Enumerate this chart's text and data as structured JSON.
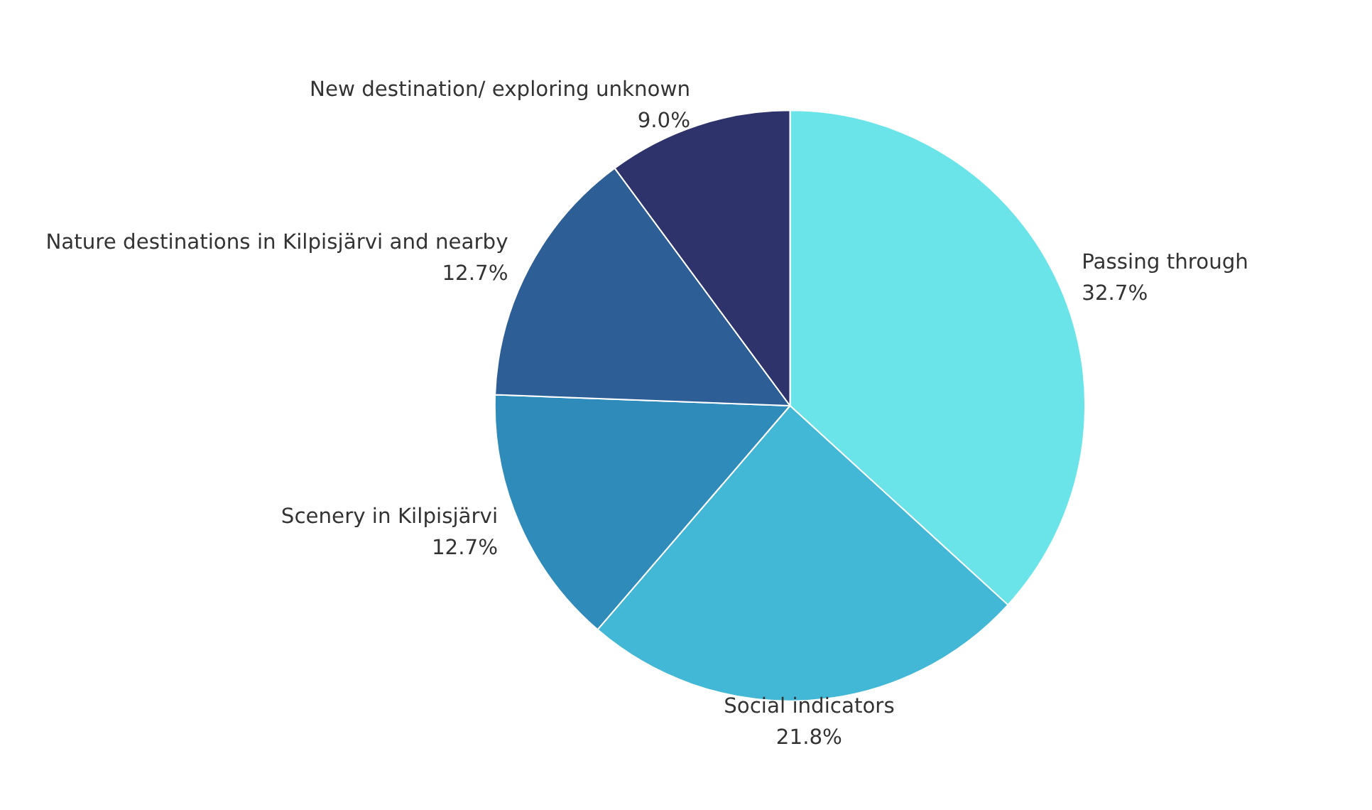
{
  "chart_data": {
    "type": "pie",
    "categories": [
      "Passing through",
      "Social indicators",
      "Scenery in Kilpisjärvi",
      "Nature destinations in Kilpisjärvi and nearby",
      "New destination/ exploring unknown"
    ],
    "values": [
      32.7,
      21.8,
      12.7,
      12.7,
      9.0
    ],
    "colors": [
      "#6ae4e8",
      "#42b7d6",
      "#2e8bba",
      "#2e5e96",
      "#2e336b"
    ],
    "value_labels": [
      "32.7%",
      "21.8%",
      "12.7%",
      "12.7%",
      "9.0%"
    ],
    "legend": false
  }
}
